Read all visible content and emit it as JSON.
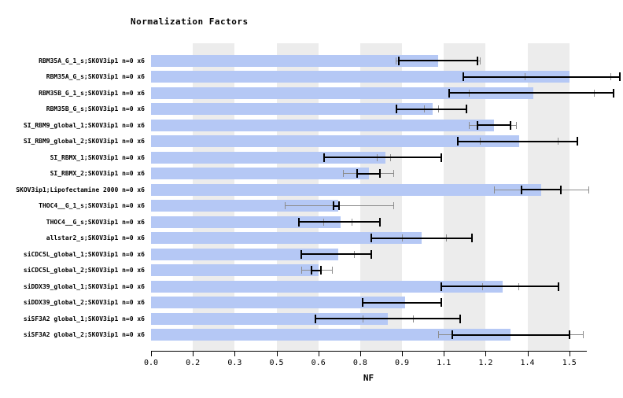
{
  "chart_data": {
    "type": "bar",
    "orientation": "horizontal",
    "title": "Normalization Factors",
    "xlabel": "NF",
    "xlim": [
      0,
      1.56
    ],
    "grid": false,
    "legend": "none",
    "background_bands": [
      [
        0.15,
        0.3
      ],
      [
        0.45,
        0.6
      ],
      [
        0.75,
        0.9
      ],
      [
        1.05,
        1.2
      ],
      [
        1.35,
        1.5
      ]
    ],
    "x_ticks": [
      {
        "value": 0.0,
        "label": "0.0"
      },
      {
        "value": 0.15,
        "label": "0.2"
      },
      {
        "value": 0.3,
        "label": "0.3"
      },
      {
        "value": 0.45,
        "label": "0.5"
      },
      {
        "value": 0.6,
        "label": "0.6"
      },
      {
        "value": 0.75,
        "label": "0.8"
      },
      {
        "value": 0.9,
        "label": "0.9"
      },
      {
        "value": 1.05,
        "label": "1.1"
      },
      {
        "value": 1.2,
        "label": "1.2"
      },
      {
        "value": 1.35,
        "label": "1.4"
      },
      {
        "value": 1.5,
        "label": "1.5"
      }
    ],
    "colors": {
      "bar": "#b5c8f5",
      "band": "#ececec",
      "error_bar": "#000000",
      "outer_whisker": "#8c8c8c"
    },
    "rows": [
      {
        "label": "RBM35A_G_1_s;SKOV3ip1 n=0 x6",
        "value": 1.03,
        "black": [
          0.89,
          1.17
        ],
        "grey_range": [
          0.88,
          1.18
        ],
        "grey_ticks": []
      },
      {
        "label": "RBM35A_G_s;SKOV3ip1 n=0 x6",
        "value": 1.5,
        "black": [
          1.12,
          1.68
        ],
        "grey_range": null,
        "grey_ticks": [
          1.34,
          1.65
        ]
      },
      {
        "label": "RBM35B_G_1_s;SKOV3ip1 n=0 x6",
        "value": 1.37,
        "black": [
          1.07,
          1.66
        ],
        "grey_range": null,
        "grey_ticks": [
          1.14,
          1.59
        ]
      },
      {
        "label": "RBM35B_G_s;SKOV3ip1 n=0 x6",
        "value": 1.01,
        "black": [
          0.88,
          1.13
        ],
        "grey_range": null,
        "grey_ticks": [
          0.98,
          1.03
        ]
      },
      {
        "label": "SI_RBM9_global_1;SKOV3ip1 n=0 x6",
        "value": 1.23,
        "black": [
          1.17,
          1.29
        ],
        "grey_range": [
          1.14,
          1.31
        ],
        "grey_ticks": []
      },
      {
        "label": "SI_RBM9_global_2;SKOV3ip1 n=0 x6",
        "value": 1.32,
        "black": [
          1.1,
          1.53
        ],
        "grey_range": null,
        "grey_ticks": [
          1.18,
          1.46
        ]
      },
      {
        "label": "SI_RBMX_1;SKOV3ip1 n=0 x6",
        "value": 0.84,
        "black": [
          0.62,
          1.04
        ],
        "grey_range": null,
        "grey_ticks": [
          0.81,
          0.86
        ]
      },
      {
        "label": "SI_RBMX_2;SKOV3ip1 n=0 x6",
        "value": 0.78,
        "black": [
          0.74,
          0.82
        ],
        "grey_range": [
          0.69,
          0.87
        ],
        "grey_ticks": []
      },
      {
        "label": "SKOV3ip1;Lipofectamine 2000 n=0 x6",
        "value": 1.4,
        "black": [
          1.33,
          1.47
        ],
        "grey_range": [
          1.23,
          1.57
        ],
        "grey_ticks": []
      },
      {
        "label": "THOC4__G_1_s;SKOV3ip1 n=0 x6",
        "value": 0.67,
        "black": [
          0.655,
          0.675
        ],
        "grey_range": [
          0.48,
          0.87
        ],
        "grey_ticks": []
      },
      {
        "label": "THOC4__G_s;SKOV3ip1 n=0 x6",
        "value": 0.68,
        "black": [
          0.53,
          0.82
        ],
        "grey_range": null,
        "grey_ticks": [
          0.62,
          0.72
        ]
      },
      {
        "label": "allstar2_s;SKOV3ip1 n=0 x6",
        "value": 0.97,
        "black": [
          0.79,
          1.15
        ],
        "grey_range": null,
        "grey_ticks": [
          0.9,
          1.06
        ]
      },
      {
        "label": "siCDC5L_global_1;SKOV3ip1 n=0 x6",
        "value": 0.67,
        "black": [
          0.54,
          0.79
        ],
        "grey_range": null,
        "grey_ticks": [
          0.73
        ]
      },
      {
        "label": "siCDC5L_global_2;SKOV3ip1 n=0 x6",
        "value": 0.6,
        "black": [
          0.575,
          0.61
        ],
        "grey_range": [
          0.54,
          0.65
        ],
        "grey_ticks": []
      },
      {
        "label": "siDDX39_global_1;SKOV3ip1 n=0 x6",
        "value": 1.26,
        "black": [
          1.04,
          1.46
        ],
        "grey_range": null,
        "grey_ticks": [
          1.19,
          1.32
        ]
      },
      {
        "label": "siDDX39_global_2;SKOV3ip1 n=0 x6",
        "value": 0.91,
        "black": [
          0.76,
          1.04
        ],
        "grey_range": null,
        "grey_ticks": []
      },
      {
        "label": "siSF3A2 global_1;SKOV3ip1 n=0 x6",
        "value": 0.85,
        "black": [
          0.59,
          1.11
        ],
        "grey_range": null,
        "grey_ticks": [
          0.76,
          0.94
        ]
      },
      {
        "label": "siSF3A2 global_2;SKOV3ip1 n=0 x6",
        "value": 1.29,
        "black": [
          1.08,
          1.5
        ],
        "grey_range": [
          1.03,
          1.55
        ],
        "grey_ticks": []
      }
    ]
  }
}
